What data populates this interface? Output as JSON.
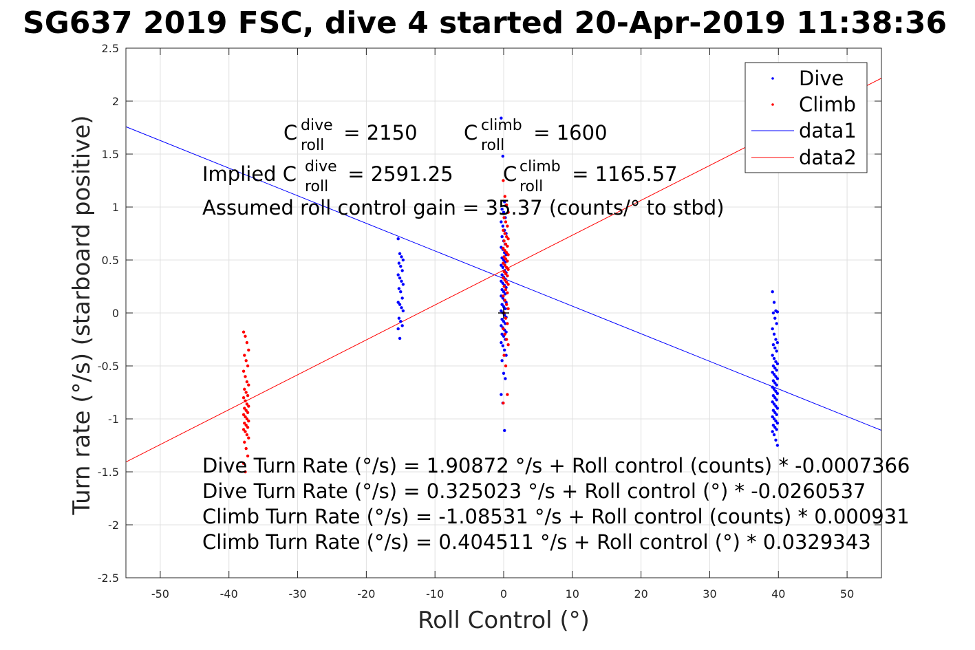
{
  "chart_data": {
    "type": "scatter",
    "title": "SG637 2019 FSC, dive 4 started 20-Apr-2019 11:38:36",
    "xlabel": "Roll Control (°)",
    "ylabel": "Turn rate (°/s) (starboard positive)",
    "xlim": [
      -55,
      55
    ],
    "ylim": [
      -2.5,
      2.5
    ],
    "xticks": [
      -50,
      -40,
      -30,
      -20,
      -10,
      0,
      10,
      20,
      30,
      40,
      50
    ],
    "yticks": [
      -2.5,
      -2,
      -1.5,
      -1,
      -0.5,
      0,
      0.5,
      1,
      1.5,
      2,
      2.5
    ],
    "xtick_labels": [
      "-50",
      "-40",
      "-30",
      "-20",
      "-10",
      "0",
      "10",
      "20",
      "30",
      "40",
      "50"
    ],
    "ytick_labels": [
      "-2.5",
      "-2",
      "-1.5",
      "-1",
      "-0.5",
      "0",
      "0.5",
      "1",
      "1.5",
      "2",
      "2.5"
    ],
    "grid": true,
    "legend_placement": "top-right",
    "colors": {
      "dive": "#0000ff",
      "climb": "#ff0000",
      "text": "#000000",
      "axis": "#262626",
      "grid": "#e0e0e0"
    },
    "legend": [
      {
        "name": "Dive",
        "kind": "marker",
        "color": "#0000ff"
      },
      {
        "name": "Climb",
        "kind": "marker",
        "color": "#ff0000"
      },
      {
        "name": "data1",
        "kind": "line",
        "color": "#0000ff"
      },
      {
        "name": "data2",
        "kind": "line",
        "color": "#ff0000"
      }
    ],
    "scatter_series": [
      {
        "name": "Dive",
        "color": "#0000ff",
        "clusters": [
          {
            "x": -15,
            "y": [
              0.7,
              0.56,
              0.53,
              0.5,
              0.47,
              0.44,
              0.4,
              0.36,
              0.33,
              0.3,
              0.27,
              0.23,
              0.2,
              0.14,
              0.1,
              0.08,
              0.05,
              0.02,
              -0.05,
              -0.08,
              -0.12,
              -0.15,
              -0.24
            ]
          },
          {
            "x": 0,
            "y": [
              1.84,
              1.48,
              1.05,
              1.02,
              0.98,
              0.95,
              0.9,
              0.86,
              0.82,
              0.78,
              0.75,
              0.72,
              0.68,
              0.65,
              0.62,
              0.6,
              0.57,
              0.55,
              0.52,
              0.5,
              0.48,
              0.45,
              0.43,
              0.4,
              0.38,
              0.36,
              0.34,
              0.32,
              0.3,
              0.28,
              0.26,
              0.24,
              0.22,
              0.2,
              0.18,
              0.16,
              0.14,
              0.12,
              0.1,
              0.08,
              0.06,
              0.04,
              0.02,
              0.0,
              -0.02,
              -0.04,
              -0.06,
              -0.08,
              -0.1,
              -0.12,
              -0.14,
              -0.16,
              -0.18,
              -0.2,
              -0.22,
              -0.25,
              -0.28,
              -0.31,
              -0.35,
              -0.4,
              -0.45,
              -0.57,
              -0.62,
              -0.77,
              -0.85,
              -1.11
            ]
          },
          {
            "x": 39.5,
            "y": [
              0.2,
              0.1,
              0.02,
              0.01,
              0.0,
              -0.05,
              -0.1,
              -0.15,
              -0.2,
              -0.25,
              -0.28,
              -0.3,
              -0.33,
              -0.36,
              -0.4,
              -0.43,
              -0.46,
              -0.48,
              -0.5,
              -0.52,
              -0.54,
              -0.56,
              -0.58,
              -0.6,
              -0.62,
              -0.64,
              -0.66,
              -0.68,
              -0.7,
              -0.72,
              -0.74,
              -0.76,
              -0.78,
              -0.8,
              -0.82,
              -0.84,
              -0.86,
              -0.88,
              -0.9,
              -0.92,
              -0.94,
              -0.96,
              -0.98,
              -1.0,
              -1.02,
              -1.04,
              -1.06,
              -1.08,
              -1.1,
              -1.12,
              -1.15,
              -1.2,
              -1.25
            ]
          }
        ]
      },
      {
        "name": "Climb",
        "color": "#ff0000",
        "clusters": [
          {
            "x": -37.5,
            "y": [
              -0.18,
              -0.22,
              -0.28,
              -0.35,
              -0.4,
              -0.45,
              -0.5,
              -0.55,
              -0.6,
              -0.65,
              -0.68,
              -0.72,
              -0.75,
              -0.78,
              -0.8,
              -0.83,
              -0.86,
              -0.88,
              -0.9,
              -0.92,
              -0.94,
              -0.96,
              -0.98,
              -1.0,
              -1.02,
              -1.04,
              -1.06,
              -1.08,
              -1.1,
              -1.12,
              -1.15,
              -1.18,
              -1.22,
              -1.28,
              -1.35,
              -1.42,
              -1.5
            ]
          },
          {
            "x": 0.3,
            "y": [
              1.25,
              1.1,
              1.02,
              0.95,
              0.9,
              0.86,
              0.82,
              0.78,
              0.75,
              0.72,
              0.7,
              0.68,
              0.65,
              0.63,
              0.61,
              0.59,
              0.57,
              0.55,
              0.53,
              0.51,
              0.49,
              0.47,
              0.45,
              0.43,
              0.41,
              0.39,
              0.37,
              0.35,
              0.33,
              0.31,
              0.29,
              0.27,
              0.25,
              0.22,
              0.19,
              0.16,
              0.12,
              0.08,
              0.04,
              0.0,
              -0.05,
              -0.1,
              -0.15,
              -0.2,
              -0.25,
              -0.3,
              -0.4,
              -0.5,
              -0.77,
              -0.85
            ]
          }
        ]
      }
    ],
    "fit_lines": [
      {
        "name": "data1",
        "color": "#0000ff",
        "intercept": 0.325023,
        "slope": -0.0260537
      },
      {
        "name": "data2",
        "color": "#ff0000",
        "intercept": 0.404511,
        "slope": 0.0329343
      }
    ],
    "origin_marker": {
      "x": 0,
      "y": 0
    },
    "annotations": {
      "c_dive_base": "C",
      "c_dive_sup": "dive",
      "c_dive_sub": "roll",
      "c_dive_val": " = 2150",
      "c_climb_base": "C",
      "c_climb_sup": "climb",
      "c_climb_sub": "roll",
      "c_climb_val": " = 1600",
      "implied_prefix": "Implied C",
      "implied_dive_sup": "dive",
      "implied_dive_sub": "roll",
      "implied_dive_val": " = 2591.25",
      "implied_climb_base": "C",
      "implied_climb_sup": "climb",
      "implied_climb_sub": "roll",
      "implied_climb_val": " = 1165.57",
      "gain": "Assumed roll control gain = 35.37 (counts/° to stbd)",
      "eq1": "Dive Turn Rate (°/s) = 1.90872 °/s + Roll control (counts) * -0.0007366",
      "eq2": "Dive Turn Rate (°/s) = 0.325023 °/s + Roll control (°) * -0.0260537",
      "eq3": "Climb Turn Rate (°/s) = -1.08531 °/s + Roll control (counts) * 0.000931",
      "eq4": "Climb Turn Rate (°/s) = 0.404511 °/s + Roll control (°) * 0.0329343"
    }
  }
}
